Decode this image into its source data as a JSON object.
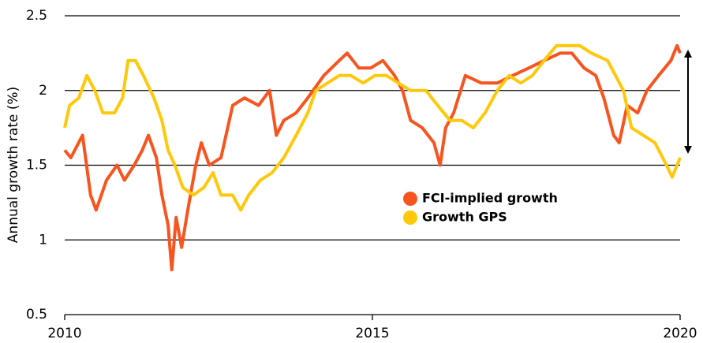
{
  "chart_data": {
    "type": "line",
    "y_label": "Annual growth rate (%)",
    "xlim": [
      2010,
      2020
    ],
    "xticks": [
      2010,
      2015,
      2020
    ],
    "ylim": [
      0.5,
      2.5
    ],
    "yticks": [
      0.5,
      1,
      1.5,
      2,
      2.5
    ],
    "grid": true,
    "series": [
      {
        "name": "FCI-implied growth",
        "color": "#f7541f",
        "x": [
          2010.0,
          2010.1,
          2010.29,
          2010.42,
          2010.51,
          2010.68,
          2010.85,
          2010.97,
          2011.13,
          2011.26,
          2011.36,
          2011.49,
          2011.58,
          2011.68,
          2011.74,
          2011.81,
          2011.9,
          2012.0,
          2012.13,
          2012.22,
          2012.35,
          2012.54,
          2012.73,
          2012.92,
          2013.15,
          2013.33,
          2013.44,
          2013.56,
          2013.76,
          2013.95,
          2014.21,
          2014.46,
          2014.59,
          2014.78,
          2014.97,
          2015.17,
          2015.36,
          2015.49,
          2015.62,
          2015.81,
          2016.0,
          2016.1,
          2016.19,
          2016.32,
          2016.51,
          2016.77,
          2017.03,
          2017.28,
          2017.54,
          2017.79,
          2018.05,
          2018.24,
          2018.44,
          2018.63,
          2018.76,
          2018.92,
          2019.01,
          2019.14,
          2019.31,
          2019.46,
          2019.65,
          2019.85,
          2019.95,
          2020.0
        ],
        "values": [
          1.6,
          1.55,
          1.7,
          1.3,
          1.2,
          1.4,
          1.5,
          1.4,
          1.5,
          1.6,
          1.7,
          1.55,
          1.3,
          1.1,
          0.8,
          1.15,
          0.95,
          1.2,
          1.5,
          1.65,
          1.5,
          1.55,
          1.9,
          1.95,
          1.9,
          2.0,
          1.7,
          1.8,
          1.85,
          1.95,
          2.1,
          2.2,
          2.25,
          2.15,
          2.15,
          2.2,
          2.1,
          2.0,
          1.8,
          1.75,
          1.65,
          1.5,
          1.75,
          1.85,
          2.1,
          2.05,
          2.05,
          2.1,
          2.15,
          2.2,
          2.25,
          2.25,
          2.15,
          2.1,
          1.95,
          1.7,
          1.65,
          1.9,
          1.85,
          2.0,
          2.1,
          2.2,
          2.3,
          2.25
        ]
      },
      {
        "name": "Growth GPS",
        "color": "#ffc80a",
        "x": [
          2010.0,
          2010.08,
          2010.23,
          2010.36,
          2010.49,
          2010.62,
          2010.81,
          2010.94,
          2011.03,
          2011.15,
          2011.28,
          2011.45,
          2011.58,
          2011.68,
          2011.79,
          2011.92,
          2012.09,
          2012.26,
          2012.41,
          2012.54,
          2012.73,
          2012.86,
          2012.99,
          2013.18,
          2013.37,
          2013.56,
          2013.76,
          2013.95,
          2014.08,
          2014.27,
          2014.46,
          2014.65,
          2014.85,
          2015.04,
          2015.23,
          2015.42,
          2015.62,
          2015.87,
          2016.06,
          2016.26,
          2016.45,
          2016.64,
          2016.83,
          2017.03,
          2017.22,
          2017.41,
          2017.6,
          2017.79,
          2017.99,
          2018.18,
          2018.37,
          2018.56,
          2018.82,
          2018.95,
          2019.08,
          2019.21,
          2019.4,
          2019.59,
          2019.78,
          2019.87,
          2019.95,
          2020.0
        ],
        "values": [
          1.75,
          1.9,
          1.95,
          2.1,
          2.0,
          1.85,
          1.85,
          1.95,
          2.2,
          2.2,
          2.1,
          1.95,
          1.8,
          1.6,
          1.5,
          1.35,
          1.3,
          1.35,
          1.45,
          1.3,
          1.3,
          1.2,
          1.3,
          1.4,
          1.45,
          1.55,
          1.7,
          1.85,
          2.0,
          2.05,
          2.1,
          2.1,
          2.05,
          2.1,
          2.1,
          2.05,
          2.0,
          2.0,
          1.9,
          1.8,
          1.8,
          1.75,
          1.85,
          2.0,
          2.1,
          2.05,
          2.1,
          2.2,
          2.3,
          2.3,
          2.3,
          2.25,
          2.2,
          2.1,
          2.0,
          1.75,
          1.7,
          1.65,
          1.5,
          1.42,
          1.5,
          1.55
        ]
      }
    ]
  }
}
